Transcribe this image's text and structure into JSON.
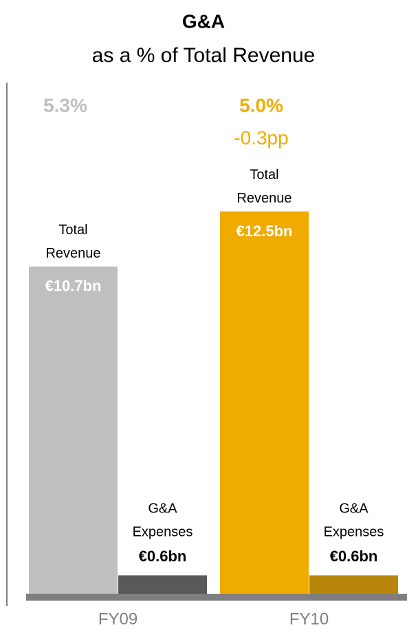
{
  "chart_data": {
    "type": "bar",
    "title": "G&A",
    "subtitle": "as a % of Total Revenue",
    "categories": [
      "FY09",
      "FY10"
    ],
    "series": [
      {
        "name": "Total Revenue",
        "colors": [
          "#bfbfbf",
          "#f0ab00"
        ],
        "values": [
          10.7,
          12.5
        ],
        "value_labels": [
          "€10.7bn",
          "€12.5bn"
        ]
      },
      {
        "name": "G&A Expenses",
        "colors": [
          "#595959",
          "#b8860b"
        ],
        "values": [
          0.6,
          0.6
        ],
        "value_labels": [
          "€0.6bn",
          "€0.6bn"
        ]
      }
    ],
    "ratio_labels": [
      {
        "text": "5.3%",
        "color": "#bfbfbf"
      },
      {
        "text": "5.0%",
        "color": "#f0ab00"
      }
    ],
    "change_label": {
      "text": "-0.3pp",
      "color": "#f0ab00"
    }
  }
}
